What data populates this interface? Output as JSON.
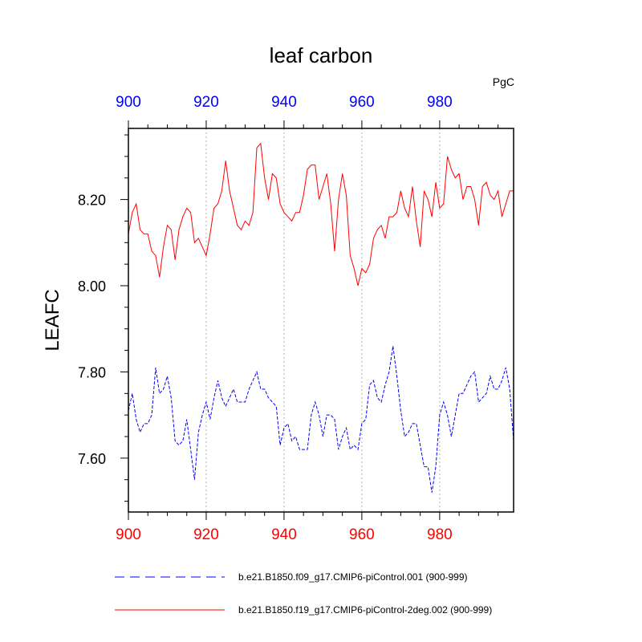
{
  "chart_data": {
    "type": "line",
    "title": "leaf carbon",
    "units_label": "PgC",
    "ylabel": "LEAFC",
    "xlabel": "",
    "xlim": [
      900,
      999
    ],
    "ylim": [
      7.475,
      8.365
    ],
    "x_ticks": [
      900,
      920,
      940,
      960,
      980
    ],
    "x_tick_labels": [
      "900",
      "920",
      "940",
      "960",
      "980"
    ],
    "y_ticks": [
      7.6,
      7.8,
      8.0,
      8.2
    ],
    "y_tick_labels": [
      "7.60",
      "7.80",
      "8.00",
      "8.20"
    ],
    "grid": "vertical dotted at major x ticks",
    "colors": {
      "top_axis_labels": "#0000ff",
      "bottom_axis_labels": "#ff0000",
      "grid": "#b0b0b0"
    },
    "legend_position": "below plot",
    "x_start": 900,
    "series": [
      {
        "name": "b.e21.B1850.f09_g17.CMIP6-piControl.001 (900-999)",
        "color": "#0000ff",
        "style": "dashed",
        "values": [
          7.71,
          7.75,
          7.69,
          7.66,
          7.68,
          7.68,
          7.7,
          7.81,
          7.75,
          7.76,
          7.79,
          7.74,
          7.64,
          7.63,
          7.64,
          7.69,
          7.62,
          7.55,
          7.66,
          7.7,
          7.73,
          7.69,
          7.74,
          7.78,
          7.74,
          7.72,
          7.74,
          7.76,
          7.73,
          7.73,
          7.73,
          7.76,
          7.78,
          7.8,
          7.76,
          7.76,
          7.74,
          7.73,
          7.72,
          7.63,
          7.67,
          7.68,
          7.64,
          7.65,
          7.62,
          7.62,
          7.62,
          7.7,
          7.73,
          7.7,
          7.65,
          7.7,
          7.7,
          7.69,
          7.62,
          7.65,
          7.67,
          7.62,
          7.63,
          7.62,
          7.68,
          7.69,
          7.77,
          7.78,
          7.74,
          7.73,
          7.77,
          7.8,
          7.86,
          7.79,
          7.71,
          7.65,
          7.66,
          7.68,
          7.68,
          7.63,
          7.58,
          7.58,
          7.52,
          7.58,
          7.7,
          7.73,
          7.7,
          7.65,
          7.7,
          7.75,
          7.75,
          7.77,
          7.79,
          7.8,
          7.73,
          7.74,
          7.75,
          7.79,
          7.76,
          7.76,
          7.78,
          7.81,
          7.76,
          7.64
        ]
      },
      {
        "name": "b.e21.B1850.f19_g17.CMIP6-piControl-2deg.002 (900-999)",
        "color": "#ff0000",
        "style": "solid",
        "values": [
          8.12,
          8.17,
          8.19,
          8.13,
          8.12,
          8.12,
          8.08,
          8.07,
          8.02,
          8.09,
          8.14,
          8.13,
          8.06,
          8.13,
          8.16,
          8.18,
          8.17,
          8.1,
          8.11,
          8.09,
          8.07,
          8.12,
          8.18,
          8.19,
          8.22,
          8.29,
          8.22,
          8.18,
          8.14,
          8.13,
          8.15,
          8.14,
          8.17,
          8.32,
          8.33,
          8.25,
          8.2,
          8.26,
          8.25,
          8.19,
          8.17,
          8.16,
          8.15,
          8.17,
          8.17,
          8.21,
          8.27,
          8.28,
          8.28,
          8.2,
          8.23,
          8.26,
          8.19,
          8.08,
          8.2,
          8.26,
          8.21,
          8.07,
          8.04,
          8.0,
          8.04,
          8.03,
          8.05,
          8.11,
          8.13,
          8.14,
          8.11,
          8.16,
          8.16,
          8.17,
          8.22,
          8.18,
          8.16,
          8.23,
          8.15,
          8.09,
          8.22,
          8.2,
          8.16,
          8.24,
          8.18,
          8.19,
          8.3,
          8.27,
          8.25,
          8.26,
          8.2,
          8.23,
          8.23,
          8.2,
          8.14,
          8.23,
          8.24,
          8.21,
          8.2,
          8.22,
          8.16,
          8.19,
          8.22,
          8.22
        ]
      }
    ]
  }
}
